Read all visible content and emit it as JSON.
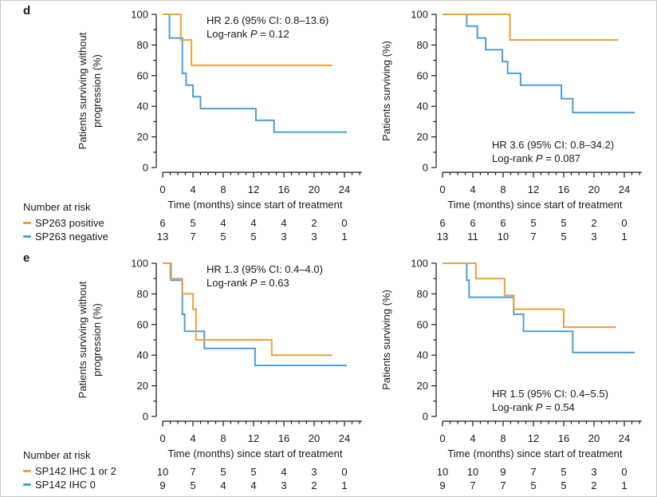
{
  "figure": {
    "panels": [
      {
        "label": "d",
        "legend": {
          "title": "Number at risk",
          "items": [
            {
              "label": "SP263 positive",
              "color": "#E8A33C"
            },
            {
              "label": "SP263 negative",
              "color": "#4D9FD6"
            }
          ]
        }
      },
      {
        "label": "e",
        "legend": {
          "title": "Number at risk",
          "items": [
            {
              "label": "SP142 IHC 1 or 2",
              "color": "#E8A33C"
            },
            {
              "label": "SP142 IHC 0",
              "color": "#4D9FD6"
            }
          ]
        }
      }
    ],
    "colors": {
      "orange": "#E8A33C",
      "blue": "#4D9FD6",
      "text": "#1A1A1A",
      "axis": "#1A1A1A"
    }
  },
  "chart_data": [
    {
      "id": "d-left",
      "panel": "d",
      "type": "line",
      "subtype": "kaplan-meier-step",
      "xlabel": "Time (months) since start of treatment",
      "ylabel_lines": [
        "Patients surviving without",
        "progression (%)"
      ],
      "xlim": [
        0,
        26
      ],
      "ylim": [
        0,
        100
      ],
      "x_ticks": [
        0,
        4,
        8,
        12,
        16,
        20,
        24
      ],
      "y_ticks": [
        0,
        20,
        40,
        60,
        80,
        100
      ],
      "grid": false,
      "annotation": {
        "line1": "HR 2.6 (95% CI: 0.8–13.6)",
        "line2_pre": "Log-rank ",
        "line2_italic": "P",
        "line2_post": " = 0.12",
        "position": "top"
      },
      "series": [
        {
          "name": "SP263 negative",
          "color": "#4D9FD6",
          "points": [
            [
              0,
              100
            ],
            [
              0.9,
              100
            ],
            [
              0.9,
              84.6
            ],
            [
              2.6,
              84.6
            ],
            [
              2.6,
              61.5
            ],
            [
              3.1,
              61.5
            ],
            [
              3.1,
              53.8
            ],
            [
              4.0,
              53.8
            ],
            [
              4.0,
              46.2
            ],
            [
              5.0,
              46.2
            ],
            [
              5.0,
              38.5
            ],
            [
              12.3,
              38.5
            ],
            [
              12.3,
              30.8
            ],
            [
              14.7,
              30.8
            ],
            [
              14.7,
              23.1
            ],
            [
              24.3,
              23.1
            ]
          ]
        },
        {
          "name": "SP263 positive",
          "color": "#E8A33C",
          "points": [
            [
              0,
              100
            ],
            [
              2.4,
              100
            ],
            [
              2.4,
              83.3
            ],
            [
              3.8,
              83.3
            ],
            [
              3.8,
              66.7
            ],
            [
              22.4,
              66.7
            ]
          ]
        }
      ],
      "risk_rows": [
        [
          6,
          5,
          4,
          4,
          4,
          2,
          0
        ],
        [
          13,
          7,
          5,
          5,
          3,
          3,
          1
        ]
      ]
    },
    {
      "id": "d-right",
      "panel": "d",
      "type": "line",
      "subtype": "kaplan-meier-step",
      "xlabel": "Time (months) since start of treatment",
      "ylabel_lines": [
        "Patients surviving (%)"
      ],
      "xlim": [
        0,
        26
      ],
      "ylim": [
        0,
        100
      ],
      "x_ticks": [
        0,
        4,
        8,
        12,
        16,
        20,
        24
      ],
      "y_ticks": [
        0,
        20,
        40,
        60,
        80,
        100
      ],
      "grid": false,
      "annotation": {
        "line1": "HR 3.6 (95% CI: 0.8–34.2)",
        "line2_pre": "Log-rank ",
        "line2_italic": "P",
        "line2_post": " = 0.087",
        "position": "bottom"
      },
      "series": [
        {
          "name": "SP263 negative",
          "color": "#4D9FD6",
          "points": [
            [
              0,
              100
            ],
            [
              3.2,
              100
            ],
            [
              3.2,
              92.3
            ],
            [
              4.6,
              92.3
            ],
            [
              4.6,
              84.6
            ],
            [
              5.7,
              84.6
            ],
            [
              5.7,
              76.9
            ],
            [
              7.9,
              76.9
            ],
            [
              7.9,
              69.2
            ],
            [
              8.6,
              69.2
            ],
            [
              8.6,
              61.5
            ],
            [
              10.3,
              61.5
            ],
            [
              10.3,
              53.8
            ],
            [
              15.7,
              53.8
            ],
            [
              15.7,
              44.9
            ],
            [
              17.2,
              44.9
            ],
            [
              17.2,
              35.9
            ],
            [
              25.4,
              35.9
            ]
          ]
        },
        {
          "name": "SP263 positive",
          "color": "#E8A33C",
          "points": [
            [
              0,
              100
            ],
            [
              8.9,
              100
            ],
            [
              8.9,
              83.3
            ],
            [
              23.2,
              83.3
            ]
          ]
        }
      ],
      "risk_rows": [
        [
          6,
          6,
          6,
          5,
          5,
          2,
          0
        ],
        [
          13,
          11,
          10,
          7,
          5,
          3,
          1
        ]
      ]
    },
    {
      "id": "e-left",
      "panel": "e",
      "type": "line",
      "subtype": "kaplan-meier-step",
      "xlabel": "Time (months) since start of treatment",
      "ylabel_lines": [
        "Patients surviving without",
        "progression (%)"
      ],
      "xlim": [
        0,
        26
      ],
      "ylim": [
        0,
        100
      ],
      "x_ticks": [
        0,
        4,
        8,
        12,
        16,
        20,
        24
      ],
      "y_ticks": [
        0,
        20,
        40,
        60,
        80,
        100
      ],
      "grid": false,
      "annotation": {
        "line1": "HR 1.3 (95% CI: 0.4–4.0)",
        "line2_pre": "Log-rank ",
        "line2_italic": "P",
        "line2_post": " = 0.63",
        "position": "top"
      },
      "series": [
        {
          "name": "SP142 IHC 0",
          "color": "#4D9FD6",
          "points": [
            [
              0,
              100
            ],
            [
              1.1,
              100
            ],
            [
              1.1,
              88.9
            ],
            [
              2.6,
              88.9
            ],
            [
              2.6,
              66.7
            ],
            [
              2.9,
              66.7
            ],
            [
              2.9,
              55.6
            ],
            [
              5.5,
              55.6
            ],
            [
              5.5,
              44.4
            ],
            [
              12.2,
              44.4
            ],
            [
              12.2,
              33.3
            ],
            [
              24.3,
              33.3
            ]
          ]
        },
        {
          "name": "SP142 IHC 1 or 2",
          "color": "#E8A33C",
          "points": [
            [
              0,
              100
            ],
            [
              1.0,
              100
            ],
            [
              1.0,
              90
            ],
            [
              2.6,
              90
            ],
            [
              2.6,
              80
            ],
            [
              4.0,
              80
            ],
            [
              4.0,
              70
            ],
            [
              4.4,
              70
            ],
            [
              4.4,
              50
            ],
            [
              14.4,
              50
            ],
            [
              14.4,
              40
            ],
            [
              22.4,
              40
            ]
          ]
        }
      ],
      "risk_rows": [
        [
          10,
          7,
          5,
          5,
          4,
          3,
          0
        ],
        [
          9,
          5,
          4,
          4,
          3,
          2,
          1
        ]
      ]
    },
    {
      "id": "e-right",
      "panel": "e",
      "type": "line",
      "subtype": "kaplan-meier-step",
      "xlabel": "Time (months) since start of treatment",
      "ylabel_lines": [
        "Patients surviving (%)"
      ],
      "xlim": [
        0,
        26
      ],
      "ylim": [
        0,
        100
      ],
      "x_ticks": [
        0,
        4,
        8,
        12,
        16,
        20,
        24
      ],
      "y_ticks": [
        0,
        20,
        40,
        60,
        80,
        100
      ],
      "grid": false,
      "annotation": {
        "line1": "HR 1.5 (95% CI: 0.4–5.5)",
        "line2_pre": "Log-rank ",
        "line2_italic": "P",
        "line2_post": " = 0.54",
        "position": "bottom"
      },
      "series": [
        {
          "name": "SP142 IHC 0",
          "color": "#4D9FD6",
          "points": [
            [
              0,
              100
            ],
            [
              3.2,
              100
            ],
            [
              3.2,
              88.9
            ],
            [
              3.5,
              88.9
            ],
            [
              3.5,
              77.8
            ],
            [
              9.4,
              77.8
            ],
            [
              9.4,
              66.7
            ],
            [
              10.7,
              66.7
            ],
            [
              10.7,
              55.6
            ],
            [
              17.2,
              55.6
            ],
            [
              17.2,
              41.7
            ],
            [
              25.4,
              41.7
            ]
          ]
        },
        {
          "name": "SP142 IHC 1 or 2",
          "color": "#E8A33C",
          "points": [
            [
              0,
              100
            ],
            [
              4.4,
              100
            ],
            [
              4.4,
              90
            ],
            [
              8.2,
              90
            ],
            [
              8.2,
              79
            ],
            [
              9.4,
              79
            ],
            [
              9.4,
              70
            ],
            [
              16.0,
              70
            ],
            [
              16.0,
              58.3
            ],
            [
              22.9,
              58.3
            ]
          ]
        }
      ],
      "risk_rows": [
        [
          10,
          10,
          9,
          7,
          5,
          3,
          0
        ],
        [
          9,
          7,
          7,
          5,
          5,
          2,
          1
        ]
      ]
    }
  ]
}
